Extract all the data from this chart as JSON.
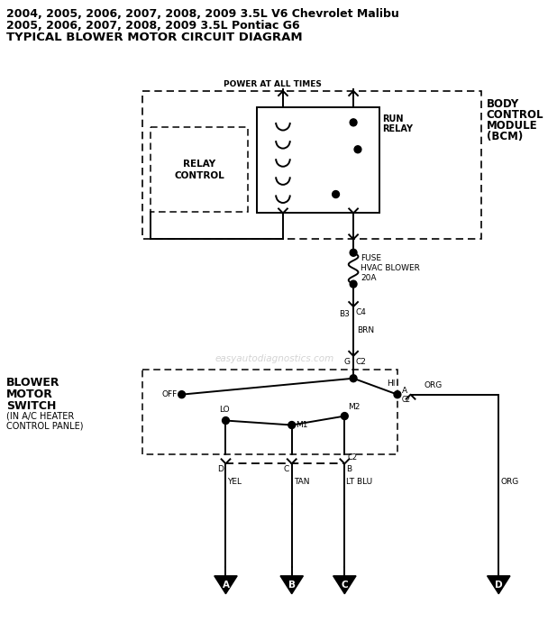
{
  "title_line1": "2004, 2005, 2006, 2007, 2008, 2009 3.5L V6 Chevrolet Malibu",
  "title_line2": "2005, 2006, 2007, 2008, 2009 3.5L Pontiac G6",
  "title_line3": "TYPICAL BLOWER MOTOR CIRCUIT DIAGRAM",
  "watermark": "easyautodiagnostics.com",
  "bg_color": "#ffffff",
  "figsize": [
    6.18,
    7.0
  ],
  "dpi": 100
}
